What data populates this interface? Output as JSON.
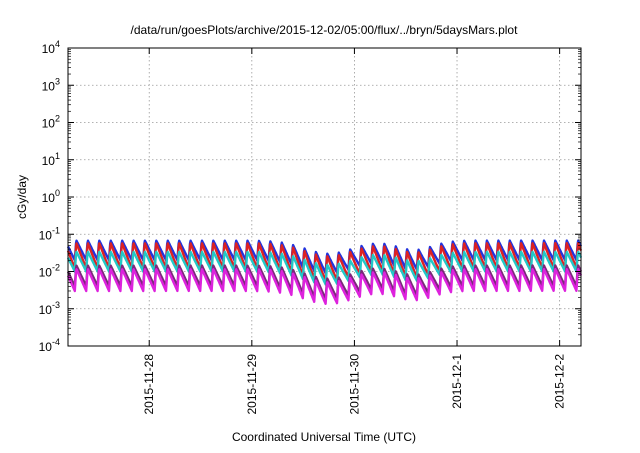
{
  "chart_data": {
    "type": "line",
    "title": "/data/run/goesPlots/archive/2015-12-02/05:00/flux/../bryn/5daysMars.plot",
    "xlabel": "Coordinated Universal Time (UTC)",
    "ylabel": "cGy/day",
    "yscale": "log",
    "ylim": [
      0.0001,
      10000
    ],
    "yticks": [
      {
        "value": 0.0001,
        "base": "10",
        "exp": "-4"
      },
      {
        "value": 0.001,
        "base": "10",
        "exp": "-3"
      },
      {
        "value": 0.01,
        "base": "10",
        "exp": "-2"
      },
      {
        "value": 0.1,
        "base": "10",
        "exp": "-1"
      },
      {
        "value": 1,
        "base": "10",
        "exp": "0"
      },
      {
        "value": 10,
        "base": "10",
        "exp": "1"
      },
      {
        "value": 100,
        "base": "10",
        "exp": "2"
      },
      {
        "value": 1000,
        "base": "10",
        "exp": "3"
      },
      {
        "value": 10000,
        "base": "10",
        "exp": "4"
      }
    ],
    "xlim": [
      "2015-11-27T05:00",
      "2015-12-02T05:00"
    ],
    "xticks": [
      {
        "label": "2015-11-28",
        "value": "2015-11-28T00:00"
      },
      {
        "label": "2015-11-29",
        "value": "2015-11-29T00:00"
      },
      {
        "label": "2015-11-30",
        "value": "2015-11-30T00:00"
      },
      {
        "label": "2015-12-1",
        "value": "2015-12-01T00:00"
      },
      {
        "label": "2015-12-2",
        "value": "2015-12-02T00:00"
      }
    ],
    "grid": true,
    "cycle_hours": 2.667,
    "cycle_note_range": "sawtooth pattern repeating roughly every 2.7 hours",
    "series": [
      {
        "color": "#2233dd",
        "peak": 0.07,
        "trough": 0.02
      },
      {
        "color": "#dd2222",
        "peak": 0.06,
        "trough": 0.012
      },
      {
        "color": "#22c8c8",
        "peak": 0.035,
        "trough": 0.01
      },
      {
        "color": "#7a2a7a",
        "peak": 0.015,
        "trough": 0.004
      },
      {
        "color": "#dd22dd",
        "peak": 0.012,
        "trough": 0.003
      }
    ]
  }
}
